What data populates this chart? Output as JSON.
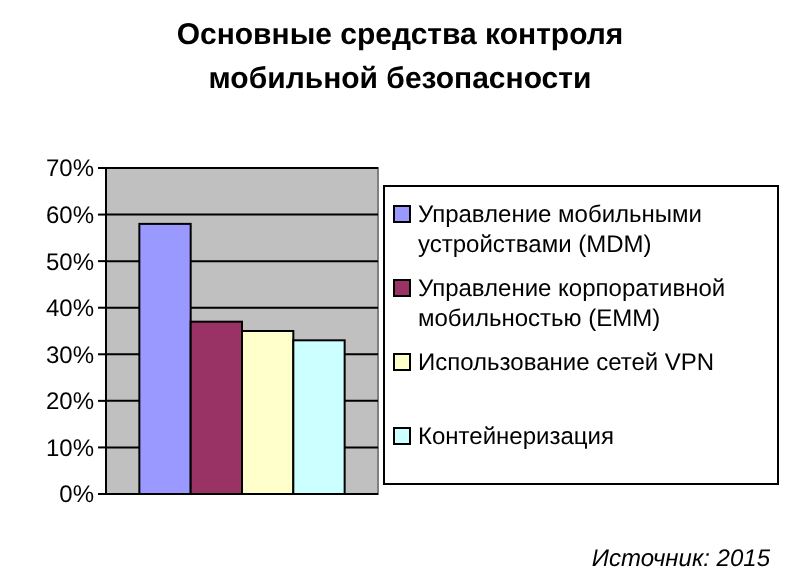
{
  "chart_data": {
    "type": "bar",
    "title": "Основные средства контроля мобильной безопасности",
    "categories": [
      null
    ],
    "series": [
      {
        "name": "Управление мобильными устройствами (MDM)",
        "color": "#9999ff",
        "values": [
          0.58
        ]
      },
      {
        "name": "Управление корпоративной мобильностью (EMM)",
        "color": "#993366",
        "values": [
          0.37
        ]
      },
      {
        "name": "Использование сетей VPN",
        "color": "#ffffcc",
        "values": [
          0.35
        ]
      },
      {
        "name": "Контейнеризация",
        "color": "#ccffff",
        "values": [
          0.33
        ]
      }
    ],
    "ylim": [
      0,
      0.7
    ],
    "yticks": [
      {
        "value": 0,
        "label": "0%"
      },
      {
        "value": 0.1,
        "label": "10%"
      },
      {
        "value": 0.2,
        "label": "20%"
      },
      {
        "value": 0.3,
        "label": "30%"
      },
      {
        "value": 0.4,
        "label": "40%"
      },
      {
        "value": 0.5,
        "label": "50%"
      },
      {
        "value": 0.6,
        "label": "60%"
      },
      {
        "value": 0.7,
        "label": "70%"
      }
    ],
    "grid": "y",
    "legend": "right",
    "annotations": [
      "Источник: 2015"
    ]
  }
}
